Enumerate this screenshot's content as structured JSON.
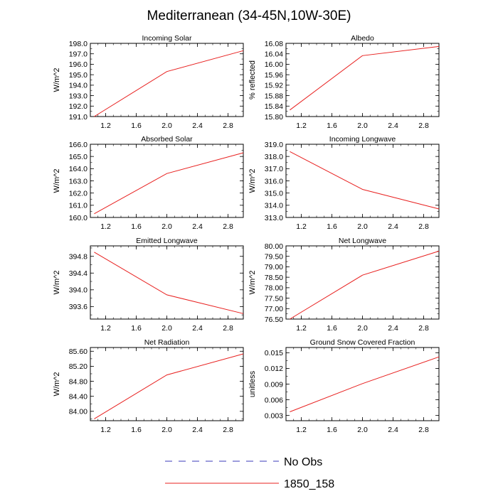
{
  "figure": {
    "title": "Mediterranean (34-45N,10W-30E)",
    "legend": {
      "placement": "bottom-center",
      "entries": [
        {
          "label": "No Obs",
          "style": "dashed",
          "color": "#3b3bb8"
        },
        {
          "label": "1850_158",
          "style": "solid",
          "color": "#e8201f"
        }
      ]
    }
  },
  "chart_data": [
    {
      "type": "line",
      "title": "Incoming Solar",
      "xlabel": "",
      "ylabel": "W/m^2",
      "xlim": [
        1.0,
        3.0
      ],
      "ylim": [
        191.0,
        198.0
      ],
      "xticks": [
        1.2,
        1.6,
        2.0,
        2.4,
        2.8
      ],
      "xtick_labels": [
        "1.2",
        "1.6",
        "2.0",
        "2.4",
        "2.8"
      ],
      "yticks": [
        191.0,
        192.0,
        193.0,
        194.0,
        195.0,
        196.0,
        197.0,
        198.0
      ],
      "ytick_labels": [
        "191.0",
        "192.0",
        "193.0",
        "194.0",
        "195.0",
        "196.0",
        "197.0",
        "198.0"
      ],
      "series": [
        {
          "name": "1850_158",
          "color": "#e8201f",
          "x": [
            1.05,
            2.0,
            3.0
          ],
          "y": [
            191.0,
            195.3,
            197.3
          ]
        }
      ]
    },
    {
      "type": "line",
      "title": "Albedo",
      "xlabel": "",
      "ylabel": "% reflected",
      "xlim": [
        1.0,
        3.0
      ],
      "ylim": [
        15.8,
        16.08
      ],
      "xticks": [
        1.2,
        1.6,
        2.0,
        2.4,
        2.8
      ],
      "xtick_labels": [
        "1.2",
        "1.6",
        "2.0",
        "2.4",
        "2.8"
      ],
      "yticks": [
        15.8,
        15.84,
        15.88,
        15.92,
        15.96,
        16.0,
        16.04,
        16.08
      ],
      "ytick_labels": [
        "15.80",
        "15.84",
        "15.88",
        "15.92",
        "15.96",
        "16.00",
        "16.04",
        "16.08"
      ],
      "series": [
        {
          "name": "1850_158",
          "color": "#e8201f",
          "x": [
            1.05,
            2.0,
            3.0
          ],
          "y": [
            15.825,
            16.033,
            16.068
          ]
        }
      ]
    },
    {
      "type": "line",
      "title": "Absorbed Solar",
      "xlabel": "",
      "ylabel": "W/m^2",
      "xlim": [
        1.0,
        3.0
      ],
      "ylim": [
        160.0,
        166.0
      ],
      "xticks": [
        1.2,
        1.6,
        2.0,
        2.4,
        2.8
      ],
      "xtick_labels": [
        "1.2",
        "1.6",
        "2.0",
        "2.4",
        "2.8"
      ],
      "yticks": [
        160.0,
        161.0,
        162.0,
        163.0,
        164.0,
        165.0,
        166.0
      ],
      "ytick_labels": [
        "160.0",
        "161.0",
        "162.0",
        "163.0",
        "164.0",
        "165.0",
        "166.0"
      ],
      "series": [
        {
          "name": "1850_158",
          "color": "#e8201f",
          "x": [
            1.05,
            2.0,
            3.0
          ],
          "y": [
            160.3,
            163.6,
            165.3
          ]
        }
      ]
    },
    {
      "type": "line",
      "title": "Incoming Longwave",
      "xlabel": "",
      "ylabel": "W/m^2",
      "xlim": [
        1.0,
        3.0
      ],
      "ylim": [
        313.0,
        319.0
      ],
      "xticks": [
        1.2,
        1.6,
        2.0,
        2.4,
        2.8
      ],
      "xtick_labels": [
        "1.2",
        "1.6",
        "2.0",
        "2.4",
        "2.8"
      ],
      "yticks": [
        313.0,
        314.0,
        315.0,
        316.0,
        317.0,
        318.0,
        319.0
      ],
      "ytick_labels": [
        "313.0",
        "314.0",
        "315.0",
        "316.0",
        "317.0",
        "318.0",
        "319.0"
      ],
      "series": [
        {
          "name": "1850_158",
          "color": "#e8201f",
          "x": [
            1.05,
            2.0,
            3.0
          ],
          "y": [
            318.4,
            315.3,
            313.7
          ]
        }
      ]
    },
    {
      "type": "line",
      "title": "Emitted Longwave",
      "xlabel": "",
      "ylabel": "W/m^2",
      "xlim": [
        1.0,
        3.0
      ],
      "ylim": [
        393.3,
        395.05
      ],
      "xticks": [
        1.2,
        1.6,
        2.0,
        2.4,
        2.8
      ],
      "xtick_labels": [
        "1.2",
        "1.6",
        "2.0",
        "2.4",
        "2.8"
      ],
      "yticks": [
        393.6,
        394.0,
        394.4,
        394.8
      ],
      "ytick_labels": [
        "393.6",
        "394.0",
        "394.4",
        "394.8"
      ],
      "series": [
        {
          "name": "1850_158",
          "color": "#e8201f",
          "x": [
            1.05,
            2.0,
            3.0
          ],
          "y": [
            394.9,
            393.88,
            393.43
          ]
        }
      ]
    },
    {
      "type": "line",
      "title": "Net Longwave",
      "xlabel": "",
      "ylabel": "W/m^2",
      "xlim": [
        1.0,
        3.0
      ],
      "ylim": [
        76.5,
        80.0
      ],
      "xticks": [
        1.2,
        1.6,
        2.0,
        2.4,
        2.8
      ],
      "xtick_labels": [
        "1.2",
        "1.6",
        "2.0",
        "2.4",
        "2.8"
      ],
      "yticks": [
        76.5,
        77.0,
        77.5,
        78.0,
        78.5,
        79.0,
        79.5,
        80.0
      ],
      "ytick_labels": [
        "76.50",
        "77.00",
        "77.50",
        "78.00",
        "78.50",
        "79.00",
        "79.50",
        "80.00"
      ],
      "series": [
        {
          "name": "1850_158",
          "color": "#e8201f",
          "x": [
            1.05,
            2.0,
            3.0
          ],
          "y": [
            76.5,
            78.6,
            79.75
          ]
        }
      ]
    },
    {
      "type": "line",
      "title": "Net Radiation",
      "xlabel": "",
      "ylabel": "W/m^2",
      "xlim": [
        1.0,
        3.0
      ],
      "ylim": [
        83.75,
        85.7
      ],
      "xticks": [
        1.2,
        1.6,
        2.0,
        2.4,
        2.8
      ],
      "xtick_labels": [
        "1.2",
        "1.6",
        "2.0",
        "2.4",
        "2.8"
      ],
      "yticks": [
        84.0,
        84.4,
        84.8,
        85.2,
        85.6
      ],
      "ytick_labels": [
        "84.00",
        "84.40",
        "84.80",
        "85.20",
        "85.60"
      ],
      "series": [
        {
          "name": "1850_158",
          "color": "#e8201f",
          "x": [
            1.05,
            2.0,
            3.0
          ],
          "y": [
            83.8,
            84.97,
            85.53
          ]
        }
      ]
    },
    {
      "type": "line",
      "title": "Ground Snow Covered Fraction",
      "xlabel": "",
      "ylabel": "unitless",
      "xlim": [
        1.0,
        3.0
      ],
      "ylim": [
        0.002,
        0.016
      ],
      "xticks": [
        1.2,
        1.6,
        2.0,
        2.4,
        2.8
      ],
      "xtick_labels": [
        "1.2",
        "1.6",
        "2.0",
        "2.4",
        "2.8"
      ],
      "yticks": [
        0.003,
        0.006,
        0.009,
        0.012,
        0.015
      ],
      "ytick_labels": [
        "0.003",
        "0.006",
        "0.009",
        "0.012",
        "0.015"
      ],
      "series": [
        {
          "name": "1850_158",
          "color": "#e8201f",
          "x": [
            1.05,
            2.0,
            3.0
          ],
          "y": [
            0.0037,
            0.0091,
            0.0142
          ]
        }
      ]
    }
  ]
}
